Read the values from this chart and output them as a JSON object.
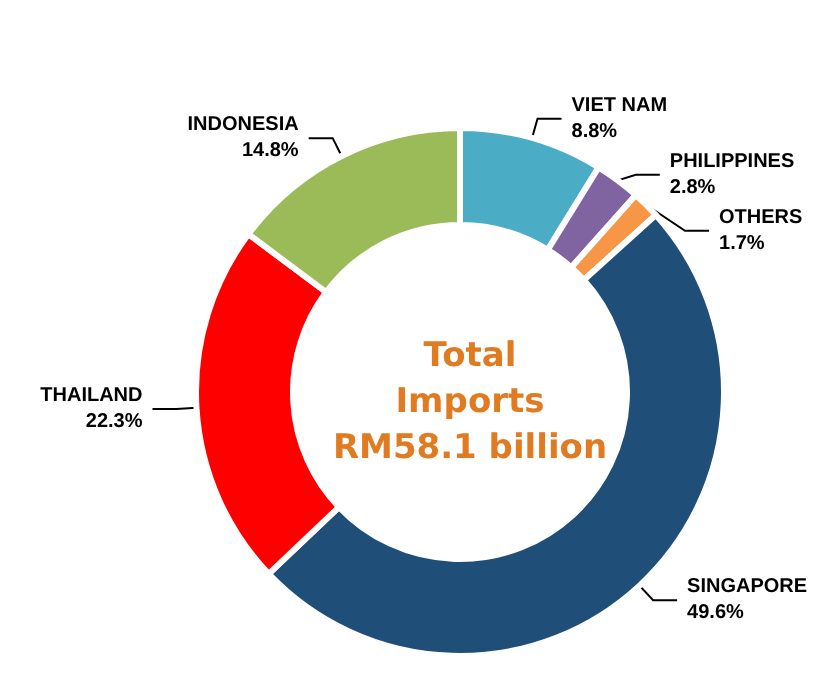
{
  "chart_data": {
    "type": "donut",
    "title": "Total Imports RM58.1 billion",
    "categories": [
      "VIET NAM",
      "PHILIPPINES",
      "OTHERS",
      "SINGAPORE",
      "THAILAND",
      "INDONESIA"
    ],
    "values": [
      8.8,
      2.8,
      1.7,
      49.6,
      22.3,
      14.8
    ],
    "colors": [
      "#4bacc6",
      "#8064a2",
      "#f79646",
      "#1f4e79",
      "#ff0000",
      "#9bbb59"
    ],
    "value_labels": [
      "8.8%",
      "2.8%",
      "1.7%",
      "49.6%",
      "22.3%",
      "14.8%"
    ],
    "legend": false
  }
}
